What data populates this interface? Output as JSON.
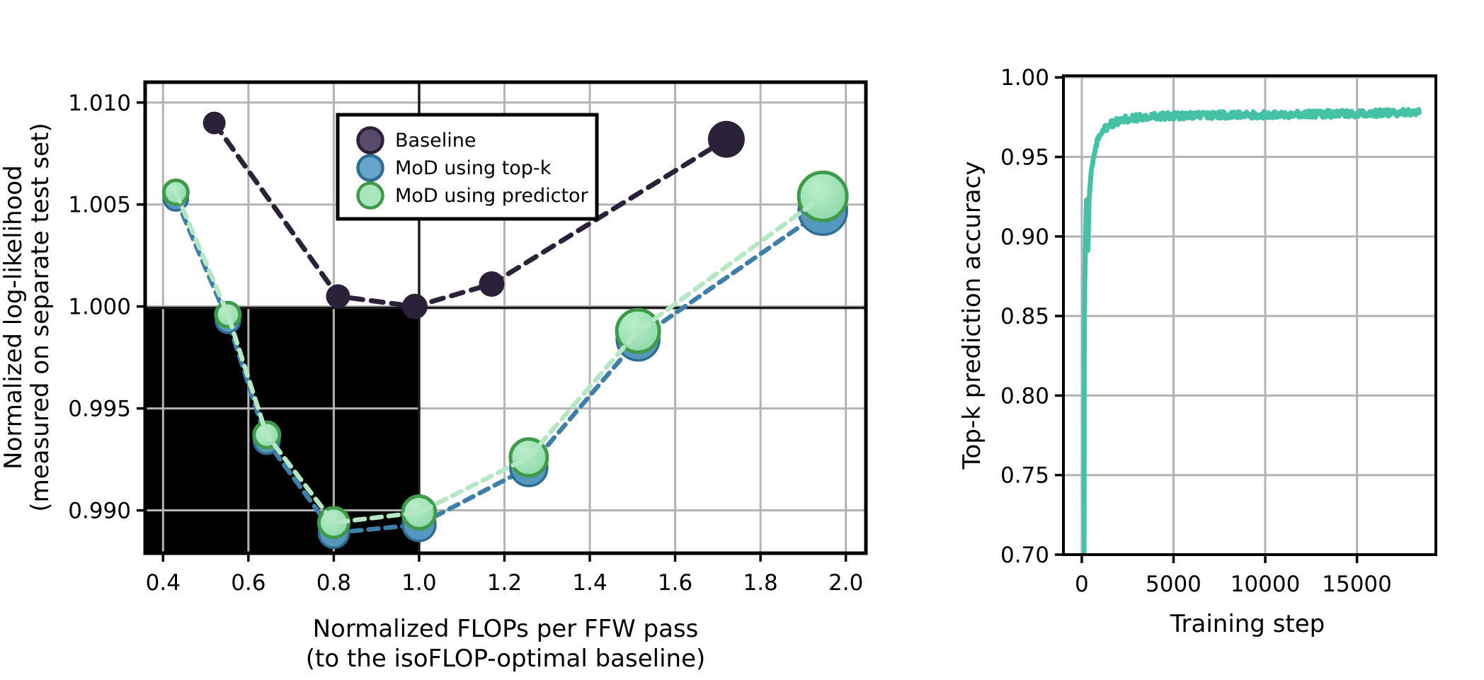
{
  "figure": {
    "background": "#ffffff",
    "grid_color": "#b3b3b3",
    "border_color": "#000000"
  },
  "chart_data": [
    {
      "id": "flops-vs-loglikelihood",
      "type": "scatter",
      "xlabel_line1": "Normalized FLOPs per FFW pass",
      "xlabel_line2": "(to the isoFLOP-optimal baseline)",
      "ylabel_line1": "Normalized log-likelihood",
      "ylabel_line2": "(measured on separate test set)",
      "xlim": [
        0.358,
        2.047
      ],
      "ylim": [
        0.9879,
        1.011
      ],
      "xticks": [
        0.4,
        0.6,
        0.8,
        1.0,
        1.2,
        1.4,
        1.6,
        1.8,
        2.0
      ],
      "xtick_labels": [
        "0.4",
        "0.6",
        "0.8",
        "1.0",
        "1.2",
        "1.4",
        "1.6",
        "1.8",
        "2.0"
      ],
      "yticks": [
        0.99,
        0.995,
        1.0,
        1.005,
        1.01
      ],
      "ytick_labels": [
        "0.990",
        "0.995",
        "1.000",
        "1.005",
        "1.010"
      ],
      "grid": true,
      "reference_lines": {
        "x": 1.0,
        "y": 1.0,
        "color": "#1a1a1a"
      },
      "shaded_region": {
        "x_to": 1.0,
        "y_to": 1.0,
        "color": "#000000"
      },
      "legend": {
        "position": "upper-left-of-center",
        "items": [
          {
            "label": "Baseline",
            "fill": "#59496a",
            "stroke": "#2b2139"
          },
          {
            "label": "MoD using top-k",
            "fill": "#67a5ca",
            "stroke": "#2f6c92"
          },
          {
            "label": "MoD using predictor",
            "fill": "#a9e5bd",
            "stroke": "#3f9a4a"
          }
        ]
      },
      "series": [
        {
          "name": "Baseline",
          "line_color": "#2b2139",
          "line_width": 7,
          "dash": "17 12",
          "marker_fill": "#2b2139",
          "marker_stroke": "#2b2139",
          "marker_stroke_width": 0,
          "points": [
            {
              "x": 0.52,
              "y": 1.009,
              "r": 16
            },
            {
              "x": 0.81,
              "y": 1.0005,
              "r": 17
            },
            {
              "x": 0.99,
              "y": 1.0,
              "r": 18
            },
            {
              "x": 1.17,
              "y": 1.0011,
              "r": 18
            },
            {
              "x": 1.72,
              "y": 1.0082,
              "r": 26
            }
          ]
        },
        {
          "name": "MoD using top-k",
          "line_color": "#3e7fa9",
          "line_width": 6.5,
          "dash": "14 10",
          "marker_fill": "#5697c0",
          "marker_stroke": "#2f6c92",
          "marker_stroke_width": 3.5,
          "points": [
            {
              "x": 0.43,
              "y": 1.0053,
              "r": 17
            },
            {
              "x": 0.552,
              "y": 0.9993,
              "r": 17
            },
            {
              "x": 0.643,
              "y": 0.9934,
              "r": 18
            },
            {
              "x": 0.8,
              "y": 0.9889,
              "r": 21
            },
            {
              "x": 1.0,
              "y": 0.9893,
              "r": 23
            },
            {
              "x": 1.257,
              "y": 0.9921,
              "r": 26
            },
            {
              "x": 1.513,
              "y": 0.9984,
              "r": 30
            },
            {
              "x": 1.946,
              "y": 1.0047,
              "r": 34
            }
          ]
        },
        {
          "name": "MoD using predictor",
          "line_color": "#b5e7c3",
          "line_width": 6.5,
          "dash": "14 10",
          "marker_fill": "gradient-green",
          "marker_stroke": "#3f9a4a",
          "marker_stroke_width": 5,
          "points": [
            {
              "x": 0.43,
              "y": 1.0056,
              "r": 17
            },
            {
              "x": 0.552,
              "y": 0.9996,
              "r": 17
            },
            {
              "x": 0.643,
              "y": 0.9937,
              "r": 18
            },
            {
              "x": 0.8,
              "y": 0.9894,
              "r": 21
            },
            {
              "x": 1.0,
              "y": 0.9899,
              "r": 23
            },
            {
              "x": 1.257,
              "y": 0.9926,
              "r": 26
            },
            {
              "x": 1.513,
              "y": 0.9988,
              "r": 30
            },
            {
              "x": 1.946,
              "y": 1.0054,
              "r": 34
            }
          ]
        }
      ]
    },
    {
      "id": "topk-prediction-accuracy",
      "type": "line",
      "xlabel": "Training step",
      "ylabel": "Top-k prediction accuracy",
      "xlim": [
        -1000,
        19300
      ],
      "ylim": [
        0.7,
        1.001
      ],
      "xticks": [
        0,
        5000,
        10000,
        15000
      ],
      "xtick_labels": [
        "0",
        "5000",
        "10000",
        "15000"
      ],
      "yticks": [
        0.7,
        0.75,
        0.8,
        0.85,
        0.9,
        0.95,
        1.0
      ],
      "ytick_labels": [
        "0.70",
        "0.75",
        "0.80",
        "0.85",
        "0.90",
        "0.95",
        "1.00"
      ],
      "grid": true,
      "series": [
        {
          "name": "Top-k prediction accuracy",
          "color": "#45c1a6",
          "line_width": 7,
          "noise_amplitude": 0.0022,
          "early_noise_amplitude": 0.004,
          "final_value": 0.978,
          "control_points": [
            [
              120,
              0.6
            ],
            [
              128,
              0.78
            ],
            [
              140,
              0.845
            ],
            [
              165,
              0.872
            ],
            [
              195,
              0.892
            ],
            [
              225,
              0.908
            ],
            [
              255,
              0.923
            ],
            [
              275,
              0.915
            ],
            [
              300,
              0.9
            ],
            [
              330,
              0.891
            ],
            [
              360,
              0.905
            ],
            [
              395,
              0.921
            ],
            [
              430,
              0.93
            ],
            [
              480,
              0.937
            ],
            [
              540,
              0.9435
            ],
            [
              620,
              0.949
            ],
            [
              720,
              0.9545
            ],
            [
              840,
              0.959
            ],
            [
              980,
              0.9629
            ],
            [
              1150,
              0.9662
            ],
            [
              1350,
              0.9688
            ],
            [
              1600,
              0.9707
            ],
            [
              1900,
              0.9722
            ],
            [
              2300,
              0.9735
            ],
            [
              2800,
              0.9744
            ],
            [
              3400,
              0.9751
            ],
            [
              4200,
              0.9756
            ],
            [
              5200,
              0.9759
            ],
            [
              6500,
              0.9762
            ],
            [
              8000,
              0.9764
            ],
            [
              9500,
              0.9766
            ],
            [
              11000,
              0.9768
            ],
            [
              12500,
              0.977
            ],
            [
              14000,
              0.9772
            ],
            [
              15500,
              0.9774
            ],
            [
              17000,
              0.9777
            ],
            [
              18000,
              0.9779
            ],
            [
              18400,
              0.9779
            ]
          ]
        }
      ]
    }
  ]
}
